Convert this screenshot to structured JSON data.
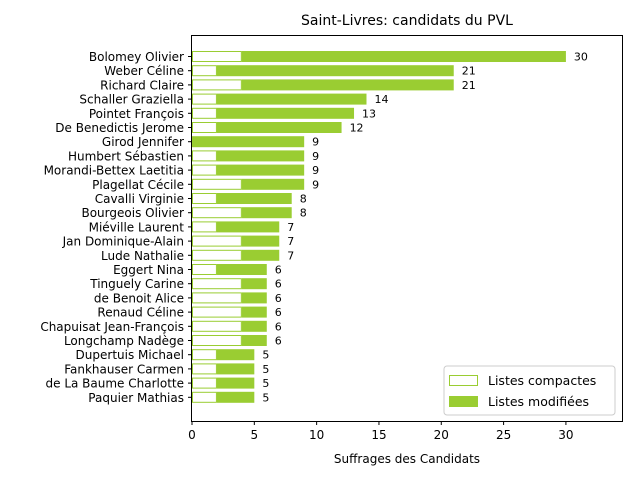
{
  "chart_data": {
    "type": "bar",
    "orientation": "horizontal",
    "stacked": true,
    "title": "Saint-Livres: candidats du PVL",
    "xlabel": "Suffrages des Candidats",
    "ylabel": "",
    "xlim": [
      0,
      34.5
    ],
    "xticks": [
      0,
      5,
      10,
      15,
      20,
      25,
      30
    ],
    "grid": false,
    "legend_position": "lower-right",
    "colors": {
      "modified": "#9acd32",
      "compact_edge": "#9acd32",
      "compact_fill": "#ffffff"
    },
    "categories": [
      "Bolomey Olivier",
      "Weber Céline",
      "Richard Claire",
      "Schaller Graziella",
      "Pointet François",
      "De Benedictis Jerome",
      "Girod Jennifer",
      "Humbert Sébastien",
      "Morandi-Bettex Laetitia",
      "Plagellat Cécile",
      "Cavalli Virginie",
      "Bourgeois Olivier",
      "Miéville Laurent",
      "Jan Dominique-Alain",
      "Lude Nathalie",
      "Eggert Nina",
      "Tinguely Carine",
      "de Benoit Alice",
      "Renaud Céline",
      "Chapuisat Jean-François",
      "Longchamp Nadège",
      "Dupertuis Michael",
      "Fankhauser Carmen",
      "de La Baume Charlotte",
      "Paquier Mathias"
    ],
    "series": [
      {
        "name": "Listes compactes",
        "values": [
          4,
          2,
          4,
          2,
          2,
          2,
          0,
          2,
          2,
          4,
          2,
          4,
          2,
          4,
          4,
          2,
          4,
          4,
          4,
          4,
          4,
          2,
          2,
          2,
          2
        ]
      },
      {
        "name": "Listes modifiées",
        "values": [
          26,
          19,
          17,
          12,
          11,
          10,
          9,
          7,
          7,
          5,
          6,
          4,
          5,
          3,
          3,
          4,
          2,
          2,
          2,
          2,
          2,
          3,
          3,
          3,
          3
        ]
      }
    ],
    "totals": [
      30,
      21,
      21,
      14,
      13,
      12,
      9,
      9,
      9,
      9,
      8,
      8,
      7,
      7,
      7,
      6,
      6,
      6,
      6,
      6,
      6,
      5,
      5,
      5,
      5
    ]
  }
}
